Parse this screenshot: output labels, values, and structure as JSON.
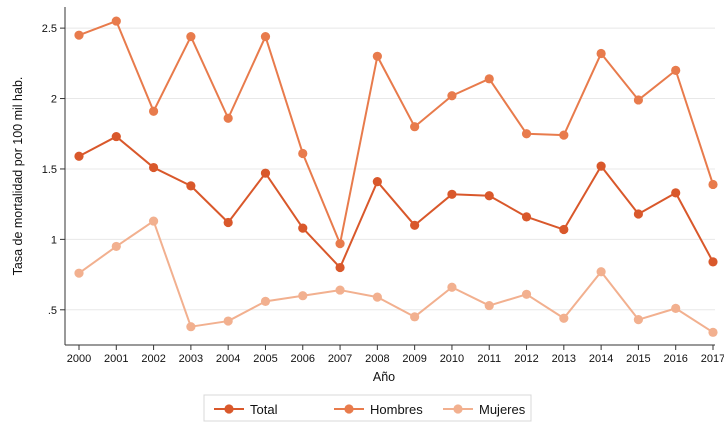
{
  "chart_data": {
    "type": "line",
    "title": "",
    "xlabel": "Año",
    "ylabel": "Tasa de mortalidad por 100 mil hab.",
    "ylim": [
      0.25,
      2.65
    ],
    "y_ticks": [
      ".5",
      "1",
      "1.5",
      "2",
      "2.5"
    ],
    "y_tick_values": [
      0.5,
      1,
      1.5,
      2,
      2.5
    ],
    "grid": true,
    "legend_position": "bottom",
    "x": [
      2000,
      2001,
      2002,
      2003,
      2004,
      2005,
      2006,
      2007,
      2008,
      2009,
      2010,
      2011,
      2012,
      2013,
      2014,
      2015,
      2016,
      2017
    ],
    "x_tick_labels": [
      "2000",
      "2001",
      "2002",
      "2003",
      "2004",
      "2005",
      "2006",
      "2007",
      "2008",
      "2009",
      "2010",
      "2011",
      "2012",
      "2013",
      "2014",
      "2015",
      "2016",
      "2017"
    ],
    "series": [
      {
        "name": "Total",
        "color": "#d9582b",
        "values": [
          1.59,
          1.73,
          1.51,
          1.38,
          1.12,
          1.47,
          1.08,
          0.8,
          1.41,
          1.1,
          1.32,
          1.31,
          1.16,
          1.07,
          1.52,
          1.18,
          1.33,
          0.84
        ]
      },
      {
        "name": "Hombres",
        "color": "#e87b4c",
        "values": [
          2.45,
          2.55,
          1.91,
          2.44,
          1.86,
          2.44,
          1.61,
          0.97,
          2.3,
          1.8,
          2.02,
          2.14,
          1.75,
          1.74,
          2.32,
          1.99,
          2.2,
          1.39
        ]
      },
      {
        "name": "Mujeres",
        "color": "#f2b08f",
        "values": [
          0.76,
          0.95,
          1.13,
          0.38,
          0.42,
          0.56,
          0.6,
          0.64,
          0.59,
          0.45,
          0.66,
          0.53,
          0.61,
          0.44,
          0.77,
          0.43,
          0.51,
          0.34
        ]
      }
    ]
  }
}
